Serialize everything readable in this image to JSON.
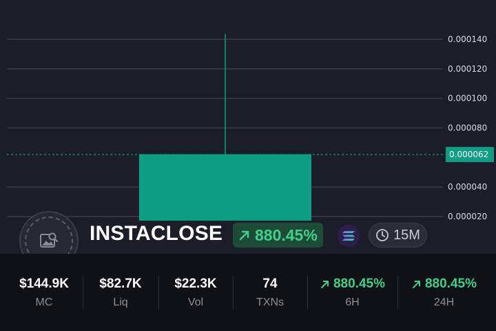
{
  "chart_data": {
    "type": "candlestick",
    "y_ticks": [
      "0.000140",
      "0.000120",
      "0.000100",
      "0.000080",
      "0.000040",
      "0.000020"
    ],
    "candles": [
      {
        "open": 1.72e-05,
        "close": 6.22e-05,
        "high": 0.0001436,
        "low": 1.72e-05
      }
    ],
    "current_price": "0.000062",
    "ylim": [
      1.2e-05,
      0.00015
    ],
    "grid": true,
    "colors": {
      "up": "#0d9e84",
      "grid": "#3a3d48",
      "price_tag_bg": "#0d9e84"
    }
  },
  "token": {
    "name": "INSTACLOSE",
    "change": "880.45%",
    "interval": "15M",
    "avatar_icon": "image-search-icon",
    "chain_icon": "solana-icon"
  },
  "stats": [
    {
      "value": "$144.9K",
      "label": "MC"
    },
    {
      "value": "$82.7K",
      "label": "Liq"
    },
    {
      "value": "$22.3K",
      "label": "Vol"
    },
    {
      "value": "74",
      "label": "TXNs"
    },
    {
      "value": "880.45%",
      "label": "6H",
      "positive": true
    },
    {
      "value": "880.45%",
      "label": "24H",
      "positive": true
    }
  ],
  "colors": {
    "background": "#1b1d28",
    "stats_background": "#0f1116",
    "positive": "#3fd08a"
  }
}
